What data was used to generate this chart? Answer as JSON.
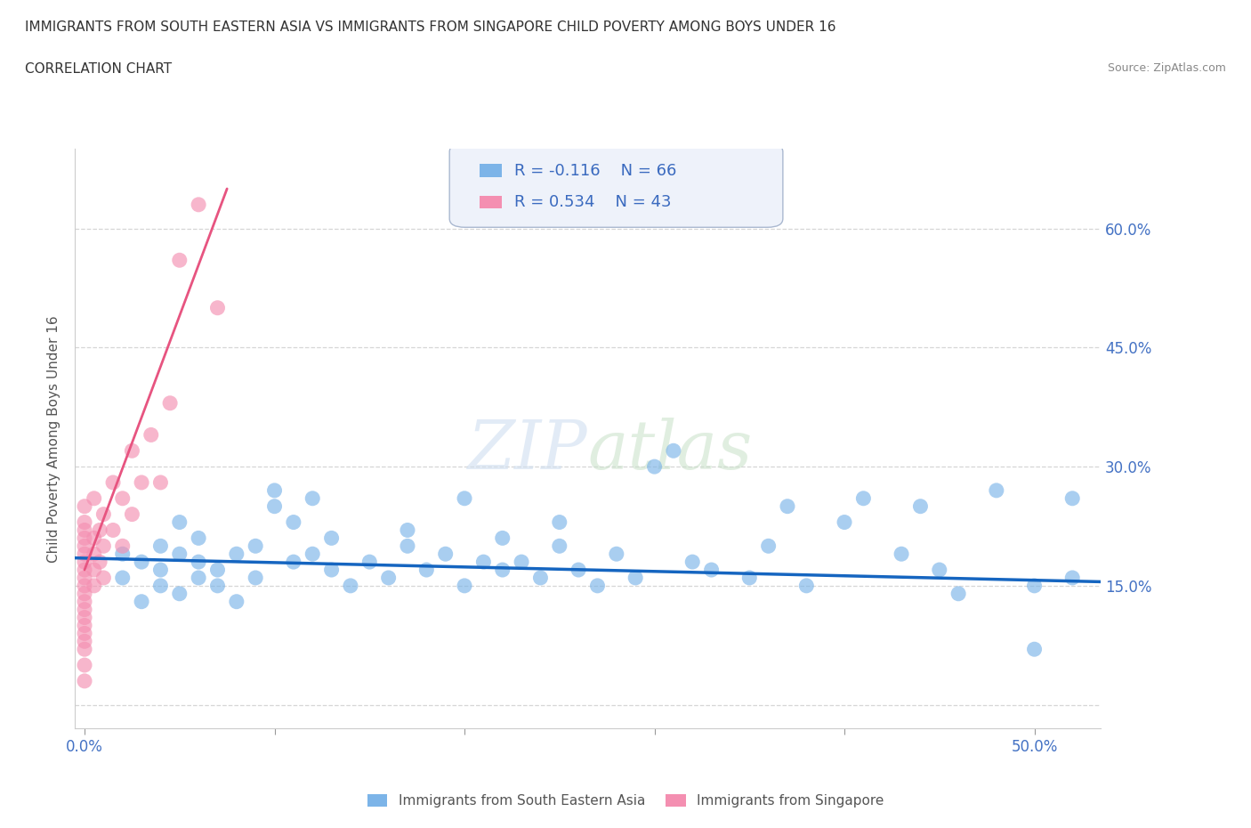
{
  "title": "IMMIGRANTS FROM SOUTH EASTERN ASIA VS IMMIGRANTS FROM SINGAPORE CHILD POVERTY AMONG BOYS UNDER 16",
  "subtitle": "CORRELATION CHART",
  "source": "Source: ZipAtlas.com",
  "ylabel": "Child Poverty Among Boys Under 16",
  "x_ticks": [
    0.0,
    0.1,
    0.2,
    0.3,
    0.4,
    0.5
  ],
  "y_ticks": [
    0.0,
    0.15,
    0.3,
    0.45,
    0.6
  ],
  "xlim": [
    -0.005,
    0.535
  ],
  "ylim": [
    -0.03,
    0.7
  ],
  "r_blue": -0.116,
  "n_blue": 66,
  "r_pink": 0.534,
  "n_pink": 43,
  "blue_color": "#7cb4e8",
  "pink_color": "#f48fb1",
  "blue_line_color": "#1565c0",
  "pink_line_color": "#e75480",
  "legend_label_blue": "Immigrants from South Eastern Asia",
  "legend_label_pink": "Immigrants from Singapore",
  "blue_scatter_x": [
    0.02,
    0.02,
    0.03,
    0.03,
    0.04,
    0.04,
    0.04,
    0.05,
    0.05,
    0.05,
    0.06,
    0.06,
    0.06,
    0.07,
    0.07,
    0.08,
    0.08,
    0.09,
    0.09,
    0.1,
    0.1,
    0.11,
    0.11,
    0.12,
    0.12,
    0.13,
    0.13,
    0.14,
    0.15,
    0.16,
    0.17,
    0.17,
    0.18,
    0.19,
    0.2,
    0.2,
    0.21,
    0.22,
    0.22,
    0.23,
    0.24,
    0.25,
    0.25,
    0.26,
    0.27,
    0.28,
    0.29,
    0.3,
    0.31,
    0.32,
    0.33,
    0.35,
    0.36,
    0.37,
    0.38,
    0.4,
    0.41,
    0.43,
    0.44,
    0.45,
    0.46,
    0.48,
    0.5,
    0.52,
    0.52,
    0.5
  ],
  "blue_scatter_y": [
    0.19,
    0.16,
    0.13,
    0.18,
    0.15,
    0.17,
    0.2,
    0.14,
    0.19,
    0.23,
    0.16,
    0.18,
    0.21,
    0.17,
    0.15,
    0.19,
    0.13,
    0.16,
    0.2,
    0.25,
    0.27,
    0.18,
    0.23,
    0.26,
    0.19,
    0.17,
    0.21,
    0.15,
    0.18,
    0.16,
    0.2,
    0.22,
    0.17,
    0.19,
    0.26,
    0.15,
    0.18,
    0.21,
    0.17,
    0.18,
    0.16,
    0.2,
    0.23,
    0.17,
    0.15,
    0.19,
    0.16,
    0.3,
    0.32,
    0.18,
    0.17,
    0.16,
    0.2,
    0.25,
    0.15,
    0.23,
    0.26,
    0.19,
    0.25,
    0.17,
    0.14,
    0.27,
    0.07,
    0.16,
    0.26,
    0.15
  ],
  "pink_scatter_x": [
    0.0,
    0.0,
    0.0,
    0.0,
    0.0,
    0.0,
    0.0,
    0.0,
    0.0,
    0.0,
    0.0,
    0.0,
    0.0,
    0.0,
    0.0,
    0.0,
    0.0,
    0.0,
    0.0,
    0.0,
    0.005,
    0.005,
    0.005,
    0.005,
    0.005,
    0.008,
    0.008,
    0.01,
    0.01,
    0.01,
    0.015,
    0.015,
    0.02,
    0.02,
    0.025,
    0.025,
    0.03,
    0.035,
    0.04,
    0.045,
    0.05,
    0.06,
    0.07
  ],
  "pink_scatter_y": [
    0.03,
    0.05,
    0.07,
    0.08,
    0.09,
    0.1,
    0.11,
    0.12,
    0.13,
    0.14,
    0.15,
    0.16,
    0.17,
    0.18,
    0.19,
    0.2,
    0.21,
    0.22,
    0.23,
    0.25,
    0.15,
    0.17,
    0.19,
    0.21,
    0.26,
    0.18,
    0.22,
    0.16,
    0.2,
    0.24,
    0.22,
    0.28,
    0.2,
    0.26,
    0.24,
    0.32,
    0.28,
    0.34,
    0.28,
    0.38,
    0.56,
    0.63,
    0.5
  ],
  "pink_line_x_start": 0.0,
  "pink_line_x_end": 0.075,
  "blue_line_y_start": 0.185,
  "blue_line_y_end": 0.155
}
